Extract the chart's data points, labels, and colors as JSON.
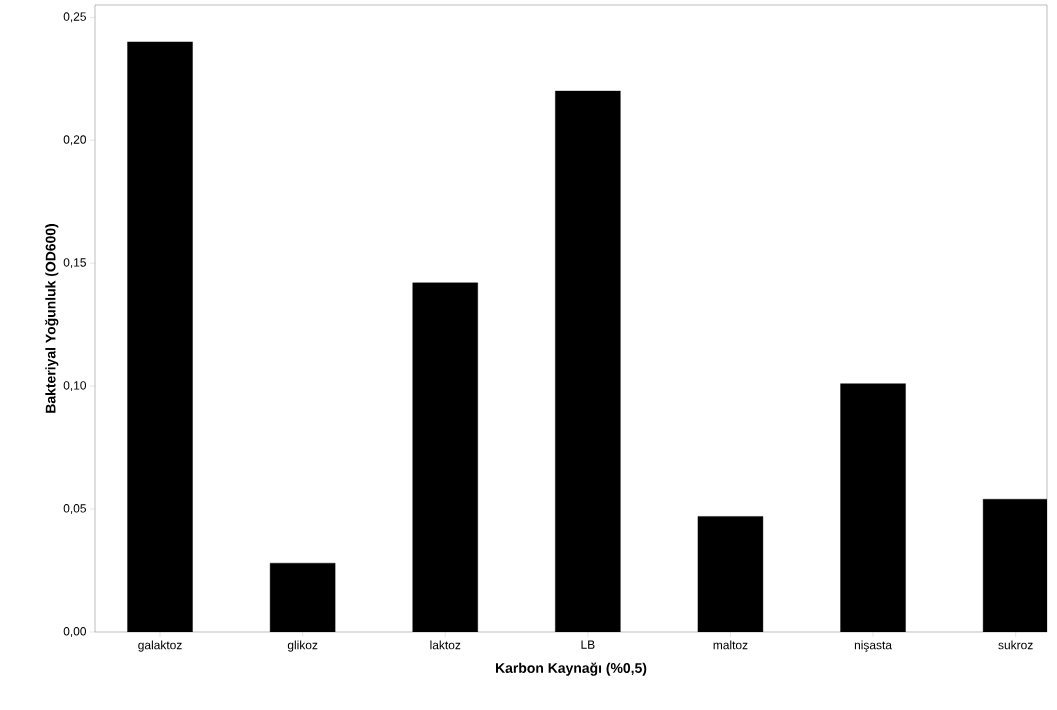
{
  "chart_data": {
    "type": "bar",
    "xlabel": "Karbon Kaynağı (%0,5)",
    "ylabel": "Bakteriyal Yoğunluk (OD600)",
    "categories": [
      "galaktoz",
      "glikoz",
      "laktoz",
      "LB",
      "maltoz",
      "nişasta",
      "sukroz"
    ],
    "values": [
      0.24,
      0.028,
      0.142,
      0.22,
      0.047,
      0.101,
      0.054
    ],
    "color": "#000000",
    "ylim": [
      0,
      0.255
    ],
    "yticks": [
      {
        "value": 0,
        "label": "0,00"
      },
      {
        "value": 0.05,
        "label": "0,05"
      },
      {
        "value": 0.1,
        "label": "0,10"
      },
      {
        "value": 0.15,
        "label": "0,15"
      },
      {
        "value": 0.2,
        "label": "0,20"
      },
      {
        "value": 0.25,
        "label": "0,25"
      }
    ]
  }
}
